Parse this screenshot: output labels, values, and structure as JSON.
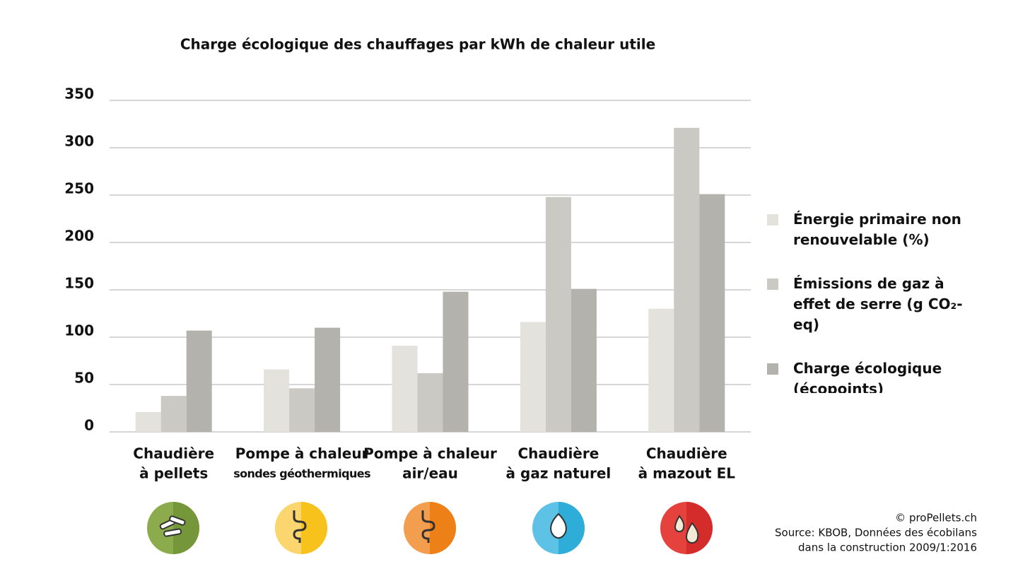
{
  "chart_data": {
    "type": "bar",
    "title": "Charge écologique des chauffages par kWh de chaleur utile",
    "categories": [
      [
        "Chaudière",
        "à pellets"
      ],
      [
        "Pompe à chaleur",
        "sondes géothermiques"
      ],
      [
        "Pompe à chaleur",
        "air/eau"
      ],
      [
        "Chaudière",
        "à gaz naturel"
      ],
      [
        "Chaudière",
        "à mazout EL"
      ]
    ],
    "series": [
      {
        "name": "Énergie primaire non renouvelable (%)",
        "color": "#e4e2dd",
        "values": [
          21,
          66,
          91,
          116,
          130
        ]
      },
      {
        "name": "Émissions de gaz à effet de serre (g CO₂-eq)",
        "color": "#cac9c4",
        "values": [
          38,
          46,
          62,
          248,
          321
        ]
      },
      {
        "name": "Charge écologique (écopoints)",
        "color": "#b3b2ad",
        "values": [
          107,
          110,
          148,
          151,
          251
        ]
      }
    ],
    "ylim": [
      0,
      350
    ],
    "yticks": [
      0,
      50,
      100,
      150,
      200,
      250,
      300,
      350
    ],
    "grid": true,
    "legend": "right",
    "source": [
      "© proPellets.ch",
      "Source: KBOB, Données des écobilans",
      "dans la construction 2009/1:2016"
    ]
  }
}
